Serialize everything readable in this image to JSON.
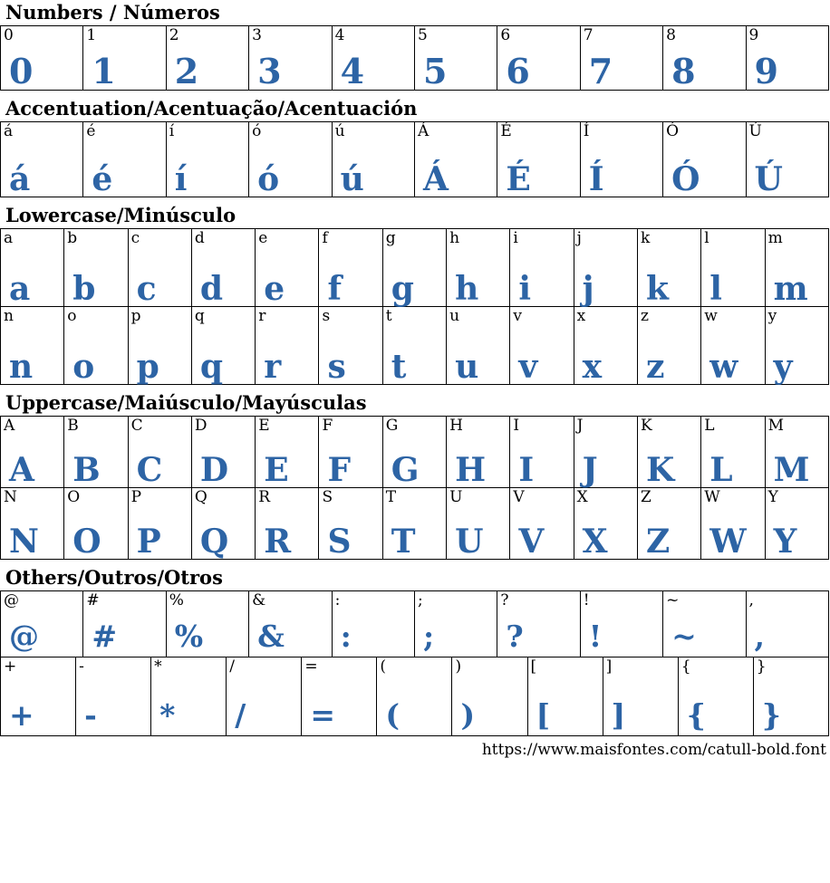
{
  "page": {
    "accent_color": "#2d64a5",
    "text_color": "#000000",
    "footer_url": "https://www.maisfontes.com/catull-bold.font"
  },
  "sections": [
    {
      "id": "numbers",
      "title": "Numbers / Números",
      "tables": [
        {
          "columns": 10,
          "rows": [
            [
              "0",
              "1",
              "2",
              "3",
              "4",
              "5",
              "6",
              "7",
              "8",
              "9"
            ]
          ]
        }
      ]
    },
    {
      "id": "accentuation",
      "title": "Accentuation/Acentuação/Acentuación",
      "tables": [
        {
          "columns": 10,
          "rows": [
            [
              "á",
              "é",
              "í",
              "ó",
              "ú",
              "Á",
              "É",
              "Í",
              "Ó",
              "Ú"
            ]
          ]
        }
      ]
    },
    {
      "id": "lowercase",
      "title": "Lowercase/Minúsculo",
      "tables": [
        {
          "columns": 13,
          "rows": [
            [
              "a",
              "b",
              "c",
              "d",
              "e",
              "f",
              "g",
              "h",
              "i",
              "j",
              "k",
              "l",
              "m"
            ],
            [
              "n",
              "o",
              "p",
              "q",
              "r",
              "s",
              "t",
              "u",
              "v",
              "x",
              "z",
              "w",
              "y"
            ]
          ]
        }
      ]
    },
    {
      "id": "uppercase",
      "title": "Uppercase/Maiúsculo/Mayúsculas",
      "tables": [
        {
          "columns": 13,
          "rows": [
            [
              "A",
              "B",
              "C",
              "D",
              "E",
              "F",
              "G",
              "H",
              "I",
              "J",
              "K",
              "L",
              "M"
            ],
            [
              "N",
              "O",
              "P",
              "Q",
              "R",
              "S",
              "T",
              "U",
              "V",
              "X",
              "Z",
              "W",
              "Y"
            ]
          ]
        }
      ]
    },
    {
      "id": "others",
      "title": "Others/Outros/Otros",
      "tables": [
        {
          "columns": 10,
          "rows": [
            [
              "@",
              "#",
              "%",
              "&",
              ":",
              ";",
              "?",
              "!",
              "~",
              ","
            ]
          ]
        },
        {
          "columns": 11,
          "rows": [
            [
              "+",
              "-",
              "*",
              "/",
              "=",
              "(",
              ")",
              "[",
              "]",
              "{",
              "}"
            ]
          ]
        }
      ]
    }
  ]
}
